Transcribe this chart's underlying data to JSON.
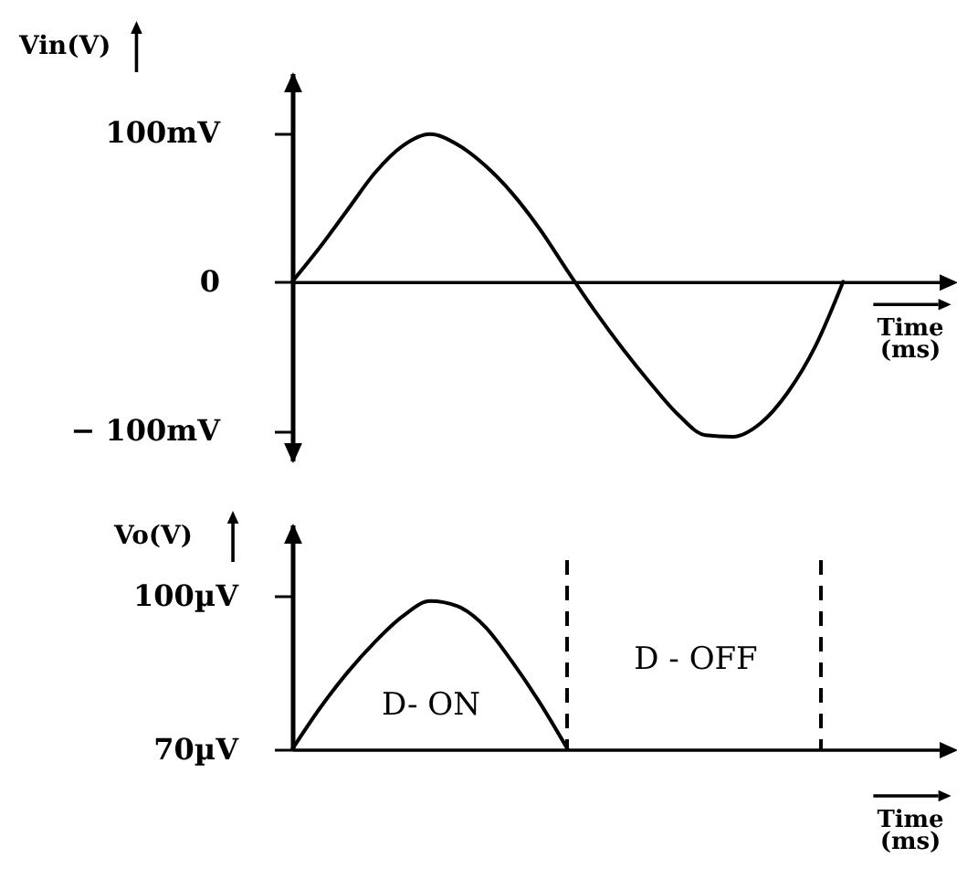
{
  "chart_data": [
    {
      "type": "line",
      "xlabel": "Time (ms)",
      "ylabel": "Vin(V)",
      "categories": [
        null,
        null,
        null,
        null,
        null,
        null,
        null,
        null,
        null,
        null,
        null,
        null,
        null,
        null,
        null,
        null,
        null,
        null,
        null,
        null,
        null,
        null,
        null,
        null,
        null
      ],
      "series": [
        {
          "color": "#000000",
          "values": [
            0,
            23,
            48,
            73,
            91,
            99,
            92,
            78,
            59,
            35,
            7,
            -20,
            -45,
            -68,
            -89,
            -103,
            -104,
            -95,
            -74,
            -43,
            0,
            null,
            null,
            null,
            null
          ]
        }
      ],
      "ylim": [
        -120,
        140
      ],
      "yticks": [
        {
          "value": 100,
          "label": "100mV"
        },
        {
          "value": 0,
          "label": "0"
        },
        {
          "value": -100,
          "label": "− 100mV"
        }
      ],
      "tick_labels": "y"
    },
    {
      "type": "line",
      "xlabel": "Time (ms)",
      "ylabel": "Vo(V)",
      "categories": [
        null,
        null,
        null,
        null,
        null,
        null,
        null,
        null,
        null,
        null,
        null,
        null,
        null,
        null,
        null,
        null,
        null,
        null,
        null,
        null,
        null,
        null,
        null,
        null,
        null
      ],
      "series": [
        {
          "color": "#000000",
          "values": [
            70,
            78,
            85,
            91,
            96,
            99,
            98,
            94,
            87,
            79,
            70,
            null,
            null,
            null,
            null,
            null,
            null,
            null,
            null,
            null,
            null,
            null,
            null,
            null,
            null
          ]
        }
      ],
      "ylim": [
        70,
        114
      ],
      "yticks": [
        {
          "value": 100,
          "label": "100µV"
        },
        {
          "value": 70,
          "label": "70µV"
        }
      ],
      "tick_labels": "y",
      "annotations": [
        "D- ON",
        "D - OFF"
      ]
    }
  ]
}
